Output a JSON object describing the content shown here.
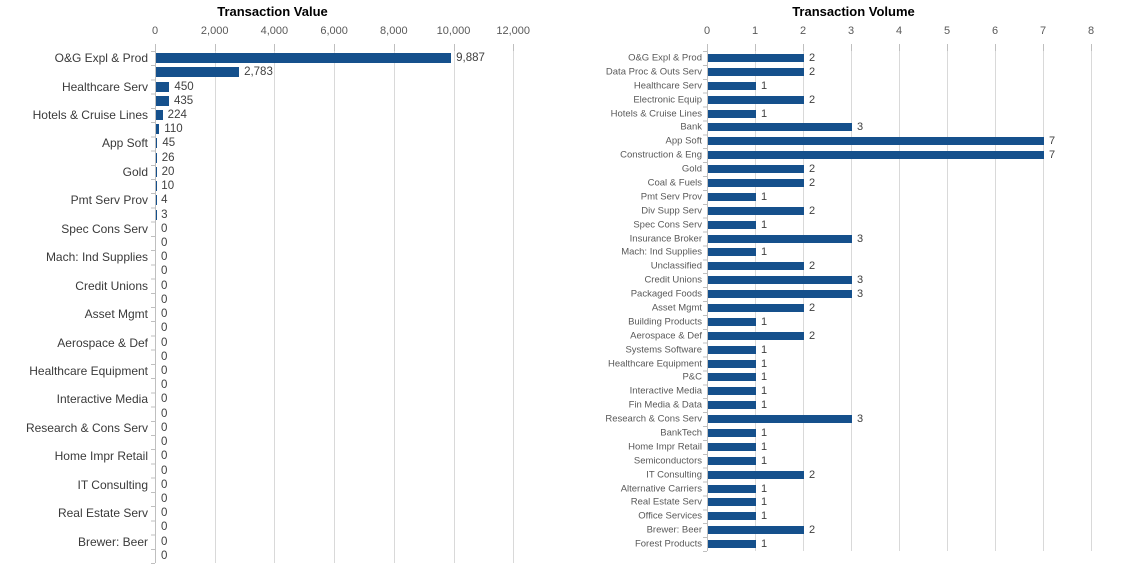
{
  "chart_data": [
    {
      "id": "value",
      "type": "bar",
      "orientation": "horizontal",
      "title": "Transaction Value",
      "xlabel": "",
      "ylabel": "",
      "xlim": [
        0,
        12000
      ],
      "xticks": [
        0,
        2000,
        4000,
        6000,
        8000,
        10000,
        12000
      ],
      "xtick_labels": [
        "0",
        "2,000",
        "4,000",
        "6,000",
        "8,000",
        "10,000",
        "12,000"
      ],
      "grid": true,
      "legend": false,
      "axis_label_note": "category labels shown for every other bar",
      "categories": [
        "O&G Expl & Prod",
        "",
        "Healthcare Serv",
        "",
        "Hotels & Cruise Lines",
        "",
        "App Soft",
        "",
        "Gold",
        "",
        "Pmt Serv Prov",
        "",
        "Spec Cons Serv",
        "",
        "Mach: Ind Supplies",
        "",
        "Credit Unions",
        "",
        "Asset Mgmt",
        "",
        "Aerospace & Def",
        "",
        "Healthcare Equipment",
        "",
        "Interactive Media",
        "",
        "Research & Cons Serv",
        "",
        "Home Impr Retail",
        "",
        "IT Consulting",
        "",
        "Real Estate Serv",
        "",
        "Brewer: Beer",
        ""
      ],
      "values": [
        9887,
        2783,
        450,
        435,
        224,
        110,
        45,
        26,
        20,
        10,
        4,
        3,
        0,
        0,
        0,
        0,
        0,
        0,
        0,
        0,
        0,
        0,
        0,
        0,
        0,
        0,
        0,
        0,
        0,
        0,
        0,
        0,
        0,
        0,
        0,
        0
      ],
      "value_labels": [
        "9,887",
        "2,783",
        "450",
        "435",
        "224",
        "110",
        "45",
        "26",
        "20",
        "10",
        "4",
        "3",
        "0",
        "0",
        "0",
        "0",
        "0",
        "0",
        "0",
        "0",
        "0",
        "0",
        "0",
        "0",
        "0",
        "0",
        "0",
        "0",
        "0",
        "0",
        "0",
        "0",
        "0",
        "0",
        "0",
        "0"
      ],
      "bar_color": "#15508C"
    },
    {
      "id": "volume",
      "type": "bar",
      "orientation": "horizontal",
      "title": "Transaction Volume",
      "xlabel": "",
      "ylabel": "",
      "xlim": [
        0,
        8
      ],
      "xticks": [
        0,
        1,
        2,
        3,
        4,
        5,
        6,
        7,
        8
      ],
      "xtick_labels": [
        "0",
        "1",
        "2",
        "3",
        "4",
        "5",
        "6",
        "7",
        "8"
      ],
      "grid": true,
      "legend": false,
      "categories": [
        "O&G Expl & Prod",
        "Data Proc & Outs Serv",
        "Healthcare Serv",
        "Electronic Equip",
        "Hotels & Cruise Lines",
        "Bank",
        "App Soft",
        "Construction & Eng",
        "Gold",
        "Coal & Fuels",
        "Pmt Serv Prov",
        "Div Supp Serv",
        "Spec Cons Serv",
        "Insurance Broker",
        "Mach: Ind Supplies",
        "Unclassified",
        "Credit Unions",
        "Packaged Foods",
        "Asset Mgmt",
        "Building Products",
        "Aerospace & Def",
        "Systems Software",
        "Healthcare Equipment",
        "P&C",
        "Interactive Media",
        "Fin Media & Data",
        "Research & Cons Serv",
        "BankTech",
        "Home Impr Retail",
        "Semiconductors",
        "IT Consulting",
        "Alternative Carriers",
        "Real Estate Serv",
        "Office Services",
        "Brewer: Beer",
        "Forest Products"
      ],
      "values": [
        2,
        2,
        1,
        2,
        1,
        3,
        7,
        7,
        2,
        2,
        1,
        2,
        1,
        3,
        1,
        2,
        3,
        3,
        2,
        1,
        2,
        1,
        1,
        1,
        1,
        1,
        3,
        1,
        1,
        1,
        2,
        1,
        1,
        1,
        2,
        1
      ],
      "value_labels": [
        "2",
        "2",
        "1",
        "2",
        "1",
        "3",
        "7",
        "7",
        "2",
        "2",
        "1",
        "2",
        "1",
        "3",
        "1",
        "2",
        "3",
        "3",
        "2",
        "1",
        "2",
        "1",
        "1",
        "1",
        "1",
        "1",
        "3",
        "1",
        "1",
        "1",
        "2",
        "1",
        "1",
        "1",
        "2",
        "1"
      ],
      "bar_color": "#15508C"
    }
  ],
  "colors": {
    "bar": "#15508C",
    "gridline": "#D9D9D9",
    "axis_line": "#BFBFBF",
    "axis_text": "#595959",
    "background": "#FFFFFF"
  }
}
